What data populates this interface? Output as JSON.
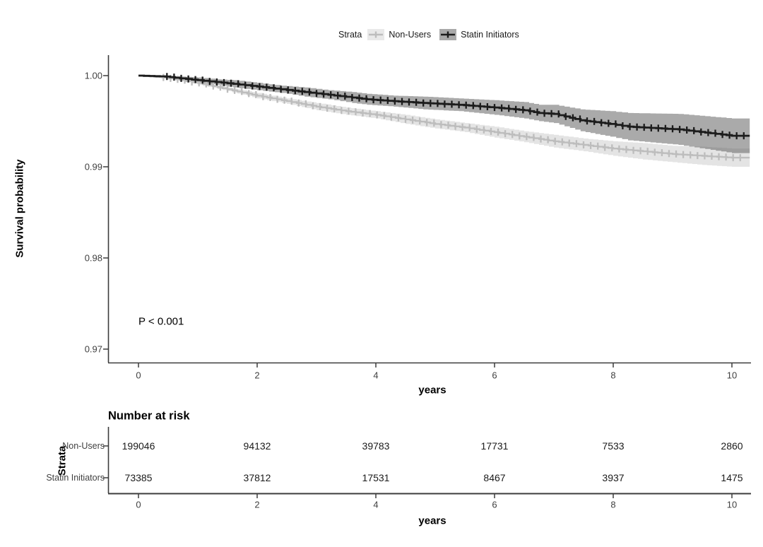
{
  "figure": {
    "legend": {
      "title": "Strata",
      "items": [
        {
          "label": "Non-Users"
        },
        {
          "label": "Statin Initiators"
        }
      ]
    },
    "pvalue": "P < 0.001",
    "ylabel": "Survival probability",
    "xlabel": "years",
    "risk_table": {
      "title": "Number at risk",
      "axis_label": "Strata",
      "xlabel": "years",
      "x_ticks": [
        "0",
        "2",
        "4",
        "6",
        "8",
        "10"
      ],
      "rows": [
        {
          "label": "Non-Users",
          "values": [
            "199046",
            "94132",
            "39783",
            "17731",
            "7533",
            "2860"
          ]
        },
        {
          "label": "Statin Initiators",
          "values": [
            "73385",
            "37812",
            "17531",
            "8467",
            "3937",
            "1475"
          ]
        }
      ]
    }
  },
  "chart_data": {
    "type": "line",
    "subtype": "kaplan-meier-step-with-confidence-bands",
    "title": "",
    "xlabel": "years",
    "ylabel": "Survival probability",
    "xlim": [
      -0.4,
      10.35
    ],
    "ylim": [
      0.9685,
      1.0025
    ],
    "x_ticks": [
      0,
      2,
      4,
      6,
      8,
      10
    ],
    "x_tick_labels": [
      "0",
      "2",
      "4",
      "6",
      "8",
      "10"
    ],
    "y_ticks": [
      1.0,
      0.99,
      0.98,
      0.97
    ],
    "y_tick_labels": [
      "1.00",
      "0.99",
      "0.98",
      "0.97"
    ],
    "grid": false,
    "legend_position": "top",
    "legend_title": "Strata",
    "pvalue_annotation": "P < 0.001",
    "series": [
      {
        "name": "Non-Users",
        "color": "#bdbdbd",
        "band_color": "rgba(85,85,85,0.16)",
        "legend_box": "#e9e9e9",
        "censor": {
          "start": 0.42,
          "end": 10.22,
          "interval": 0.12
        },
        "points": [
          [
            0,
            1.0,
            1.0,
            1.0
          ],
          [
            0.4,
            0.9998,
            0.9997,
            0.9999
          ],
          [
            0.7,
            0.9995,
            0.9994,
            0.9996
          ],
          [
            1.0,
            0.9992,
            0.999,
            0.9994
          ],
          [
            1.5,
            0.9985,
            0.9983,
            0.9987
          ],
          [
            2.0,
            0.9978,
            0.9975,
            0.9981
          ],
          [
            2.5,
            0.9972,
            0.9969,
            0.9975
          ],
          [
            3.0,
            0.9966,
            0.9962,
            0.997
          ],
          [
            3.5,
            0.9961,
            0.9957,
            0.9965
          ],
          [
            4.0,
            0.9957,
            0.9953,
            0.9961
          ],
          [
            4.5,
            0.9952,
            0.9947,
            0.9957
          ],
          [
            5.0,
            0.9947,
            0.9942,
            0.9952
          ],
          [
            5.5,
            0.9943,
            0.9938,
            0.9948
          ],
          [
            6.0,
            0.9938,
            0.9932,
            0.9944
          ],
          [
            6.5,
            0.9933,
            0.9927,
            0.9939
          ],
          [
            7.0,
            0.9928,
            0.9921,
            0.9935
          ],
          [
            7.5,
            0.9924,
            0.9917,
            0.9931
          ],
          [
            8.0,
            0.992,
            0.9912,
            0.9928
          ],
          [
            8.5,
            0.9917,
            0.9908,
            0.9926
          ],
          [
            9.0,
            0.9914,
            0.9905,
            0.9923
          ],
          [
            9.5,
            0.9912,
            0.9902,
            0.9922
          ],
          [
            10.0,
            0.991,
            0.99,
            0.992
          ],
          [
            10.3,
            0.991,
            0.99,
            0.992
          ]
        ]
      },
      {
        "name": "Statin Initiators",
        "color": "#1c1c1c",
        "band_color": "rgba(85,85,85,0.5)",
        "legend_box": "#a9a9a9",
        "censor": {
          "start": 0.48,
          "end": 10.22,
          "interval": 0.12
        },
        "points": [
          [
            0,
            1.0,
            1.0,
            1.0
          ],
          [
            0.45,
            0.9999,
            0.9997,
            1.0
          ],
          [
            0.7,
            0.9997,
            0.9995,
            0.9999
          ],
          [
            1.0,
            0.9995,
            0.9992,
            0.9998
          ],
          [
            1.3,
            0.9993,
            0.999,
            0.9996
          ],
          [
            1.6,
            0.9991,
            0.9987,
            0.9995
          ],
          [
            2.0,
            0.9988,
            0.9984,
            0.9992
          ],
          [
            2.4,
            0.9985,
            0.9981,
            0.9989
          ],
          [
            2.8,
            0.9982,
            0.9977,
            0.9987
          ],
          [
            3.2,
            0.9979,
            0.9974,
            0.9984
          ],
          [
            3.6,
            0.9976,
            0.997,
            0.9982
          ],
          [
            3.85,
            0.9974,
            0.9968,
            0.998
          ],
          [
            4.3,
            0.9972,
            0.9966,
            0.9978
          ],
          [
            4.8,
            0.997,
            0.9963,
            0.9977
          ],
          [
            5.4,
            0.9968,
            0.9961,
            0.9975
          ],
          [
            6.0,
            0.9965,
            0.9957,
            0.9973
          ],
          [
            6.5,
            0.9962,
            0.9953,
            0.9971
          ],
          [
            6.75,
            0.9959,
            0.995,
            0.9968
          ],
          [
            7.0,
            0.9958,
            0.9948,
            0.9968
          ],
          [
            7.45,
            0.9951,
            0.9939,
            0.9963
          ],
          [
            7.95,
            0.9947,
            0.9933,
            0.9961
          ],
          [
            8.25,
            0.9944,
            0.9929,
            0.9959
          ],
          [
            9.1,
            0.9941,
            0.9924,
            0.9958
          ],
          [
            10.0,
            0.9934,
            0.9915,
            0.9953
          ],
          [
            10.3,
            0.9934,
            0.9915,
            0.9953
          ]
        ]
      }
    ],
    "risk_table": {
      "title": "Number at risk",
      "times": [
        0,
        2,
        4,
        6,
        8,
        10
      ],
      "rows": [
        {
          "name": "Non-Users",
          "counts": [
            199046,
            94132,
            39783,
            17731,
            7533,
            2860
          ]
        },
        {
          "name": "Statin Initiators",
          "counts": [
            73385,
            37812,
            17531,
            8467,
            3937,
            1475
          ]
        }
      ]
    }
  }
}
